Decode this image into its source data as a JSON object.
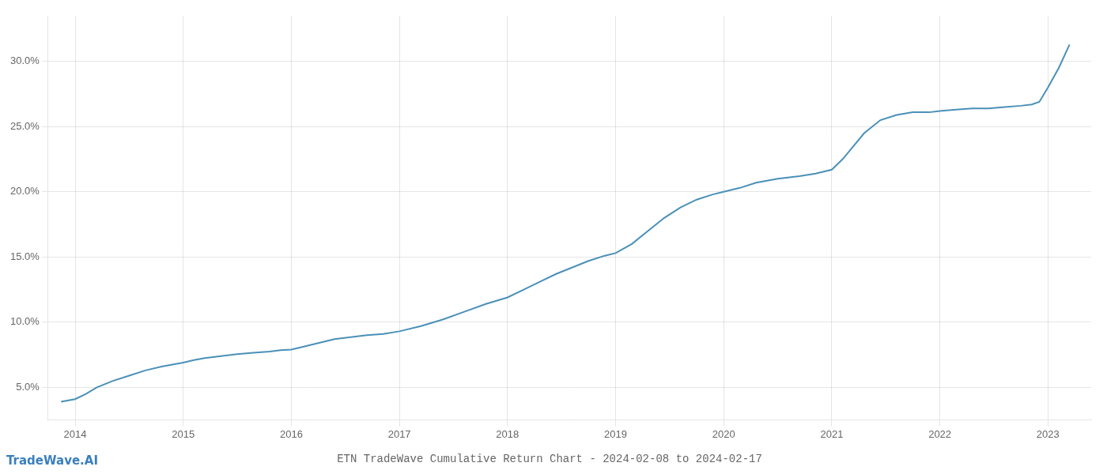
{
  "chart_data": {
    "type": "line",
    "title": "ETN TradeWave Cumulative Return Chart - 2024-02-08 to 2024-02-17",
    "annotations": [
      {
        "text": "TradeWave.AI",
        "color": "#3a7fbf"
      }
    ],
    "x": [
      2013.87,
      2014.0,
      2014.1,
      2014.2,
      2014.35,
      2014.5,
      2014.65,
      2014.8,
      2015.0,
      2015.1,
      2015.2,
      2015.35,
      2015.5,
      2015.65,
      2015.8,
      2015.9,
      2016.0,
      2016.1,
      2016.25,
      2016.4,
      2016.55,
      2016.7,
      2016.85,
      2017.0,
      2017.2,
      2017.4,
      2017.6,
      2017.8,
      2018.0,
      2018.15,
      2018.3,
      2018.45,
      2018.6,
      2018.75,
      2018.9,
      2019.0,
      2019.15,
      2019.3,
      2019.45,
      2019.6,
      2019.75,
      2019.9,
      2020.0,
      2020.15,
      2020.3,
      2020.5,
      2020.7,
      2020.85,
      2021.0,
      2021.1,
      2021.2,
      2021.3,
      2021.45,
      2021.6,
      2021.75,
      2021.9,
      2022.0,
      2022.15,
      2022.3,
      2022.45,
      2022.6,
      2022.75,
      2022.85,
      2022.92,
      2023.0,
      2023.1,
      2023.2
    ],
    "values": [
      3.9,
      4.1,
      4.5,
      5.0,
      5.5,
      5.9,
      6.3,
      6.6,
      6.9,
      7.1,
      7.25,
      7.4,
      7.55,
      7.65,
      7.75,
      7.85,
      7.9,
      8.1,
      8.4,
      8.7,
      8.85,
      9.0,
      9.1,
      9.3,
      9.7,
      10.2,
      10.8,
      11.4,
      11.9,
      12.5,
      13.1,
      13.7,
      14.2,
      14.7,
      15.1,
      15.3,
      16.0,
      17.0,
      18.0,
      18.8,
      19.4,
      19.8,
      20.0,
      20.3,
      20.7,
      21.0,
      21.2,
      21.4,
      21.7,
      22.5,
      23.5,
      24.5,
      25.5,
      25.9,
      26.1,
      26.1,
      26.2,
      26.3,
      26.4,
      26.4,
      26.5,
      26.6,
      26.7,
      26.9,
      28.0,
      29.5,
      31.3
    ],
    "color": "#4a90b8",
    "xlim": [
      2013.75,
      2023.4
    ],
    "xticks": [
      2014,
      2015,
      2016,
      2017,
      2018,
      2019,
      2020,
      2021,
      2022,
      2023
    ],
    "ylim": [
      2.5,
      33.5
    ],
    "yticks": [
      {
        "value": 5.0,
        "label": "5.0%"
      },
      {
        "value": 10.0,
        "label": "10.0%"
      },
      {
        "value": 15.0,
        "label": "15.0%"
      },
      {
        "value": 20.0,
        "label": "20.0%"
      },
      {
        "value": 25.0,
        "label": "25.0%"
      },
      {
        "value": 30.0,
        "label": "30.0%"
      }
    ],
    "grid": true
  }
}
